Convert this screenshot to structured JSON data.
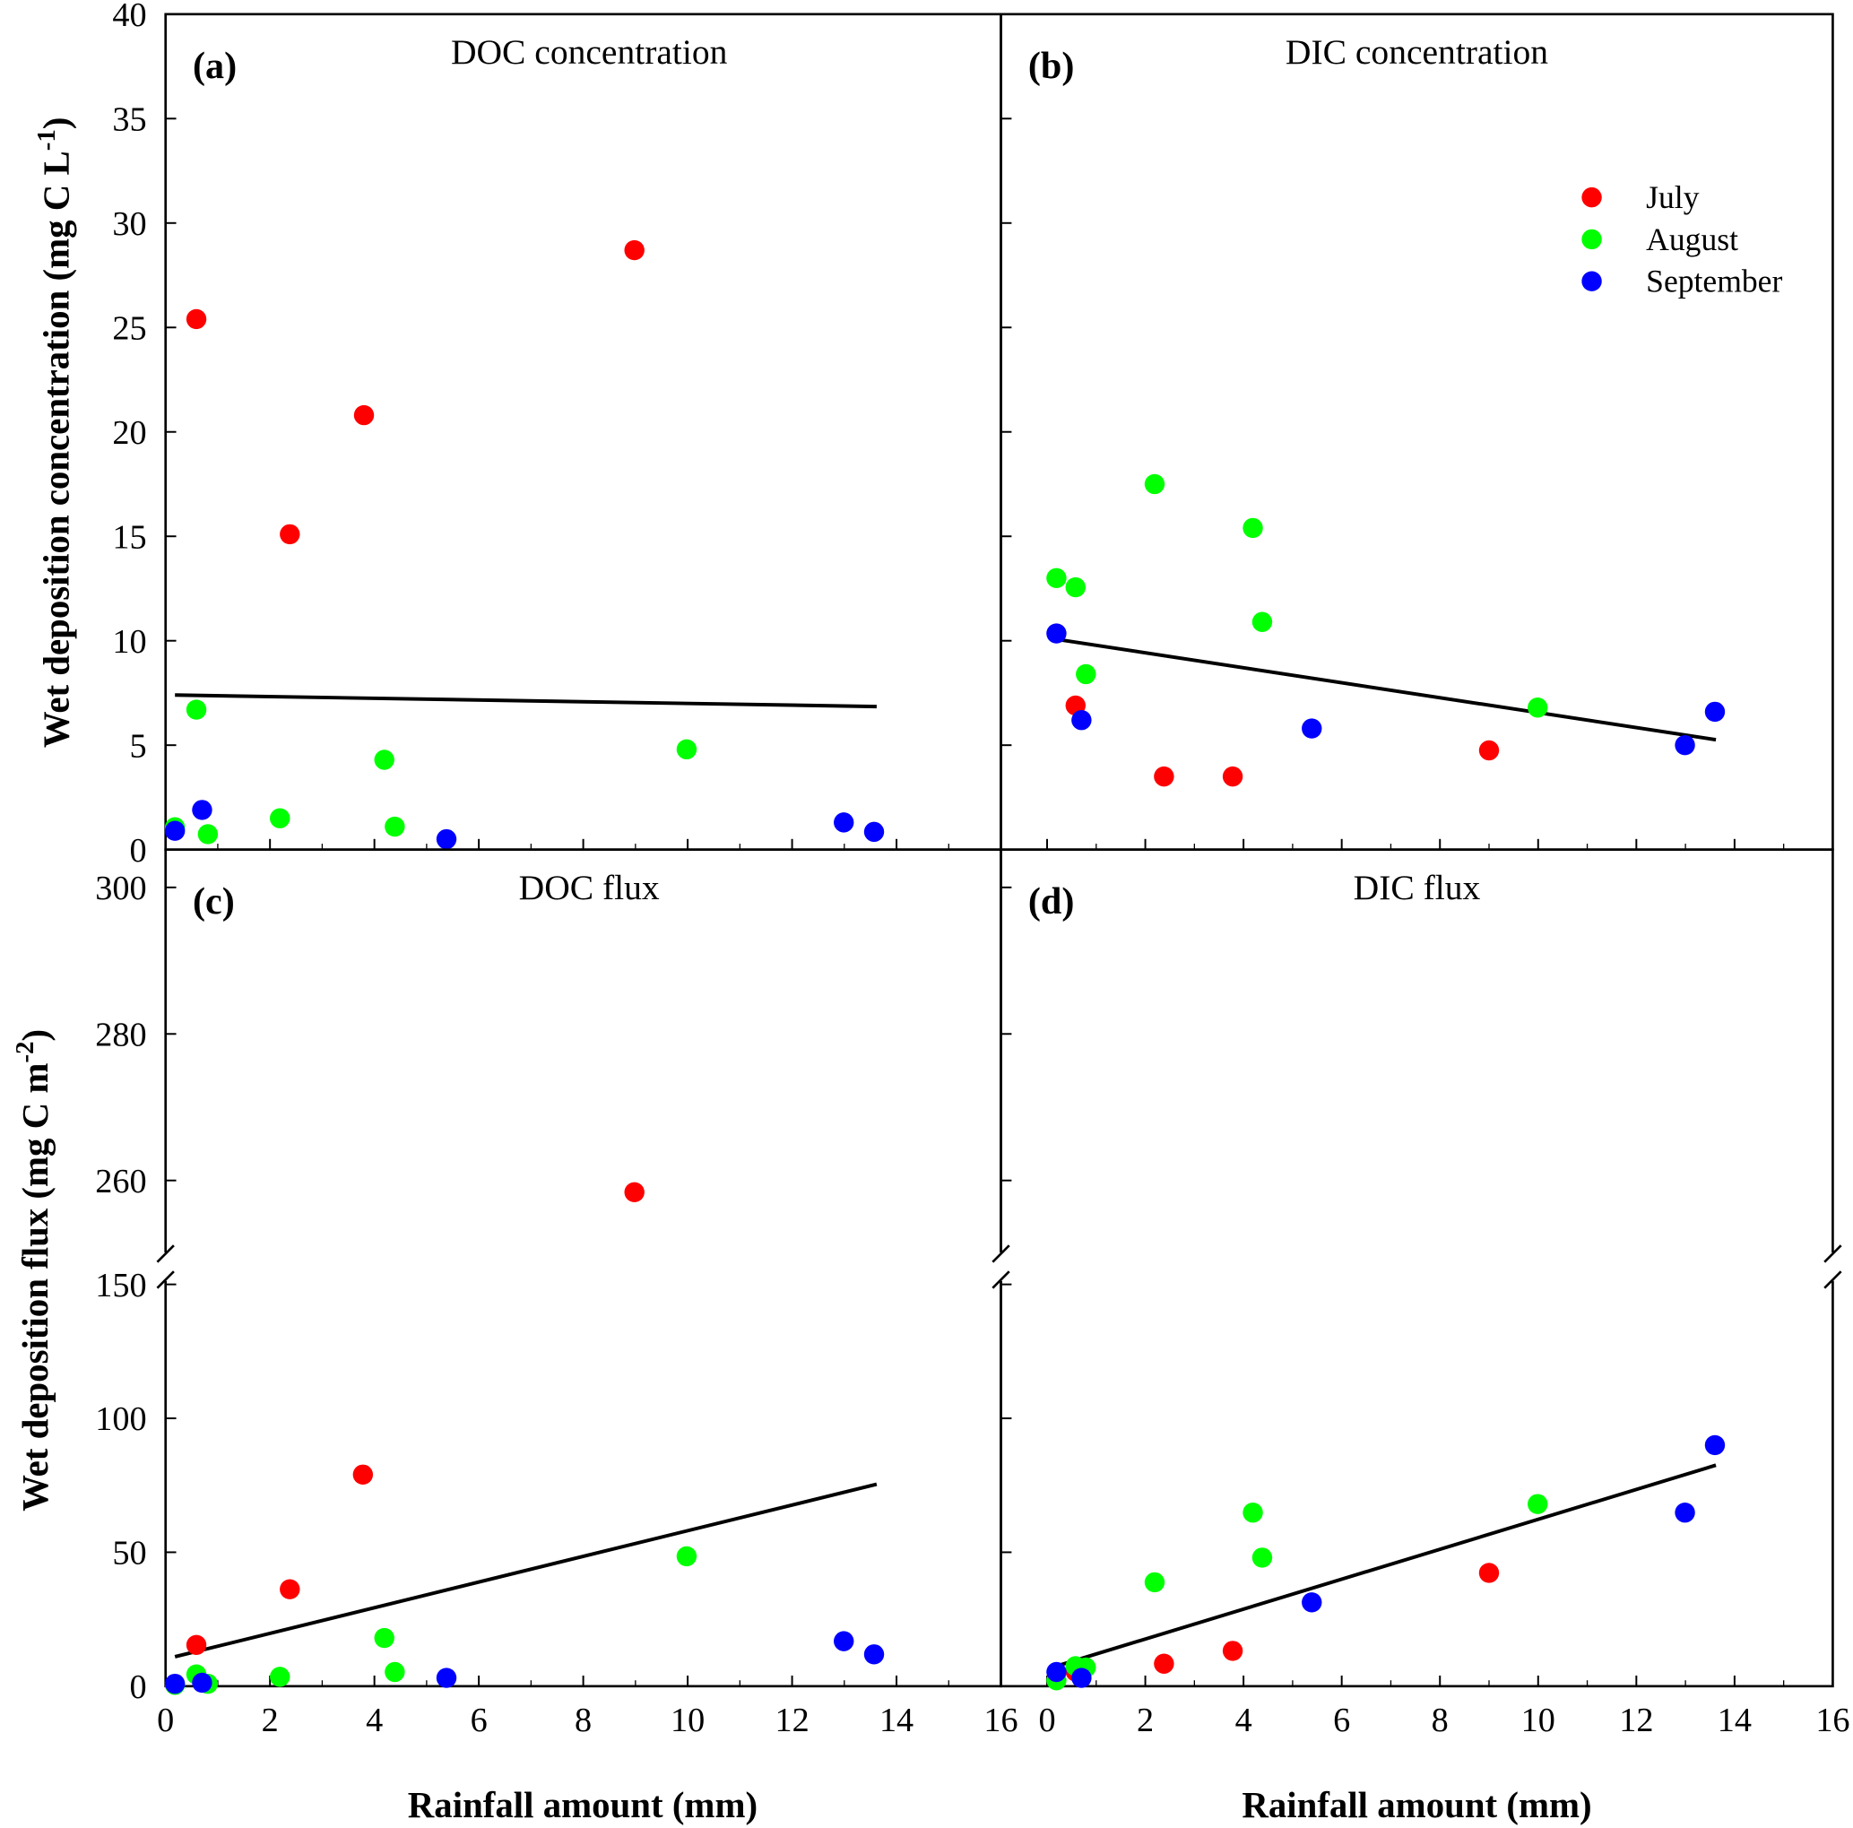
{
  "chart_data": [
    {
      "type": "scatter",
      "panel_label": "(a)",
      "title": "DOC concentration",
      "xlim": [
        0,
        16
      ],
      "ylim": [
        0,
        40
      ],
      "yticks": [
        0,
        5,
        10,
        15,
        20,
        25,
        30,
        35,
        40
      ],
      "series": [
        {
          "name": "July",
          "color": "#ff0000",
          "points": [
            [
              0.59,
              25.4
            ],
            [
              2.38,
              15.1
            ],
            [
              3.8,
              20.8
            ],
            [
              8.98,
              28.7
            ]
          ]
        },
        {
          "name": "August",
          "color": "#00ff00",
          "points": [
            [
              0.18,
              1.07
            ],
            [
              0.59,
              6.7
            ],
            [
              0.81,
              0.74
            ],
            [
              2.19,
              1.5
            ],
            [
              4.19,
              4.3
            ],
            [
              4.39,
              1.1
            ],
            [
              9.98,
              4.8
            ]
          ]
        },
        {
          "name": "September",
          "color": "#0000ff",
          "points": [
            [
              0.18,
              0.9
            ],
            [
              0.7,
              1.9
            ],
            [
              5.38,
              0.5
            ],
            [
              12.99,
              1.3
            ],
            [
              13.57,
              0.85
            ]
          ]
        }
      ],
      "fit_line": [
        [
          0.18,
          7.4
        ],
        [
          13.62,
          6.85
        ]
      ]
    },
    {
      "type": "scatter",
      "panel_label": "(b)",
      "title": "DIC concentration",
      "xlim": [
        -0.94,
        16
      ],
      "ylim": [
        0,
        40
      ],
      "series": [
        {
          "name": "July",
          "color": "#ff0000",
          "points": [
            [
              0.58,
              6.9
            ],
            [
              2.38,
              3.5
            ],
            [
              3.78,
              3.5
            ],
            [
              9.0,
              4.75
            ]
          ]
        },
        {
          "name": "August",
          "color": "#00ff00",
          "points": [
            [
              0.19,
              13.0
            ],
            [
              0.58,
              12.56
            ],
            [
              0.79,
              8.4
            ],
            [
              2.19,
              17.5
            ],
            [
              4.19,
              15.4
            ],
            [
              4.38,
              10.9
            ],
            [
              9.99,
              6.8
            ]
          ]
        },
        {
          "name": "September",
          "color": "#0000ff",
          "points": [
            [
              0.19,
              10.35
            ],
            [
              0.7,
              6.2
            ],
            [
              5.39,
              5.8
            ],
            [
              12.99,
              5.0
            ],
            [
              13.6,
              6.6
            ]
          ]
        }
      ],
      "fit_line": [
        [
          0.19,
          10.07
        ],
        [
          13.62,
          5.26
        ]
      ],
      "legend": {
        "placement": "top-right",
        "entries": [
          "July",
          "August",
          "September"
        ]
      }
    },
    {
      "type": "scatter",
      "panel_label": "(c)",
      "title": "DOC flux",
      "xlim": [
        0,
        16
      ],
      "xticks": [
        0,
        2,
        4,
        6,
        8,
        10,
        12,
        14,
        16
      ],
      "ylim_lower": [
        0,
        150
      ],
      "ylim_upper": [
        250,
        305
      ],
      "broken_axis": true,
      "yticks_lower": [
        0,
        50,
        100,
        150
      ],
      "yticks_upper": [
        260,
        280,
        300
      ],
      "series": [
        {
          "name": "July",
          "color": "#ff0000",
          "points": [
            [
              0.59,
              15.4
            ],
            [
              2.38,
              36.2
            ],
            [
              3.78,
              79
            ],
            [
              8.98,
              258.4
            ]
          ]
        },
        {
          "name": "August",
          "color": "#00ff00",
          "points": [
            [
              0.18,
              0.5
            ],
            [
              0.59,
              4.4
            ],
            [
              0.81,
              0.9
            ],
            [
              2.19,
              3.5
            ],
            [
              4.19,
              18
            ],
            [
              4.39,
              5.3
            ],
            [
              9.98,
              48.5
            ]
          ]
        },
        {
          "name": "September",
          "color": "#0000ff",
          "points": [
            [
              0.18,
              0.9
            ],
            [
              0.7,
              1.3
            ],
            [
              5.38,
              3.1
            ],
            [
              12.99,
              16.8
            ],
            [
              13.57,
              11.9
            ]
          ]
        }
      ],
      "fit_line": [
        [
          0.18,
          11
        ],
        [
          13.62,
          75.4
        ]
      ]
    },
    {
      "type": "scatter",
      "panel_label": "(d)",
      "title": "DIC flux",
      "xlim": [
        -0.94,
        16
      ],
      "xticks": [
        0,
        2,
        4,
        6,
        8,
        10,
        12,
        14,
        16
      ],
      "ylim_lower": [
        0,
        150
      ],
      "ylim_upper": [
        250,
        305
      ],
      "broken_axis": true,
      "series": [
        {
          "name": "July",
          "color": "#ff0000",
          "points": [
            [
              0.58,
              5.5
            ],
            [
              2.38,
              8.4
            ],
            [
              3.78,
              13.2
            ],
            [
              9.0,
              42.3
            ]
          ]
        },
        {
          "name": "August",
          "color": "#00ff00",
          "points": [
            [
              0.19,
              2.2
            ],
            [
              0.58,
              7.5
            ],
            [
              0.79,
              7.0
            ],
            [
              2.19,
              38.8
            ],
            [
              4.19,
              64.8
            ],
            [
              4.38,
              48
            ],
            [
              9.99,
              68
            ]
          ]
        },
        {
          "name": "September",
          "color": "#0000ff",
          "points": [
            [
              0.19,
              5.3
            ],
            [
              0.7,
              3.1
            ],
            [
              5.39,
              31.3
            ],
            [
              12.99,
              64.8
            ],
            [
              13.6,
              90
            ]
          ]
        }
      ],
      "fit_line": [
        [
          0.19,
          7.5
        ],
        [
          13.62,
          82.5
        ]
      ]
    }
  ],
  "axes": {
    "y_top": {
      "text": "Wet deposition concentration (mg C L",
      "sup": "-1",
      "end": ")"
    },
    "y_bottom": {
      "text": "Wet deposition flux (mg C m",
      "sup": "-2",
      "end": ")"
    },
    "x_left": "Rainfall amount (mm)",
    "x_right": "Rainfall amount (mm)"
  }
}
